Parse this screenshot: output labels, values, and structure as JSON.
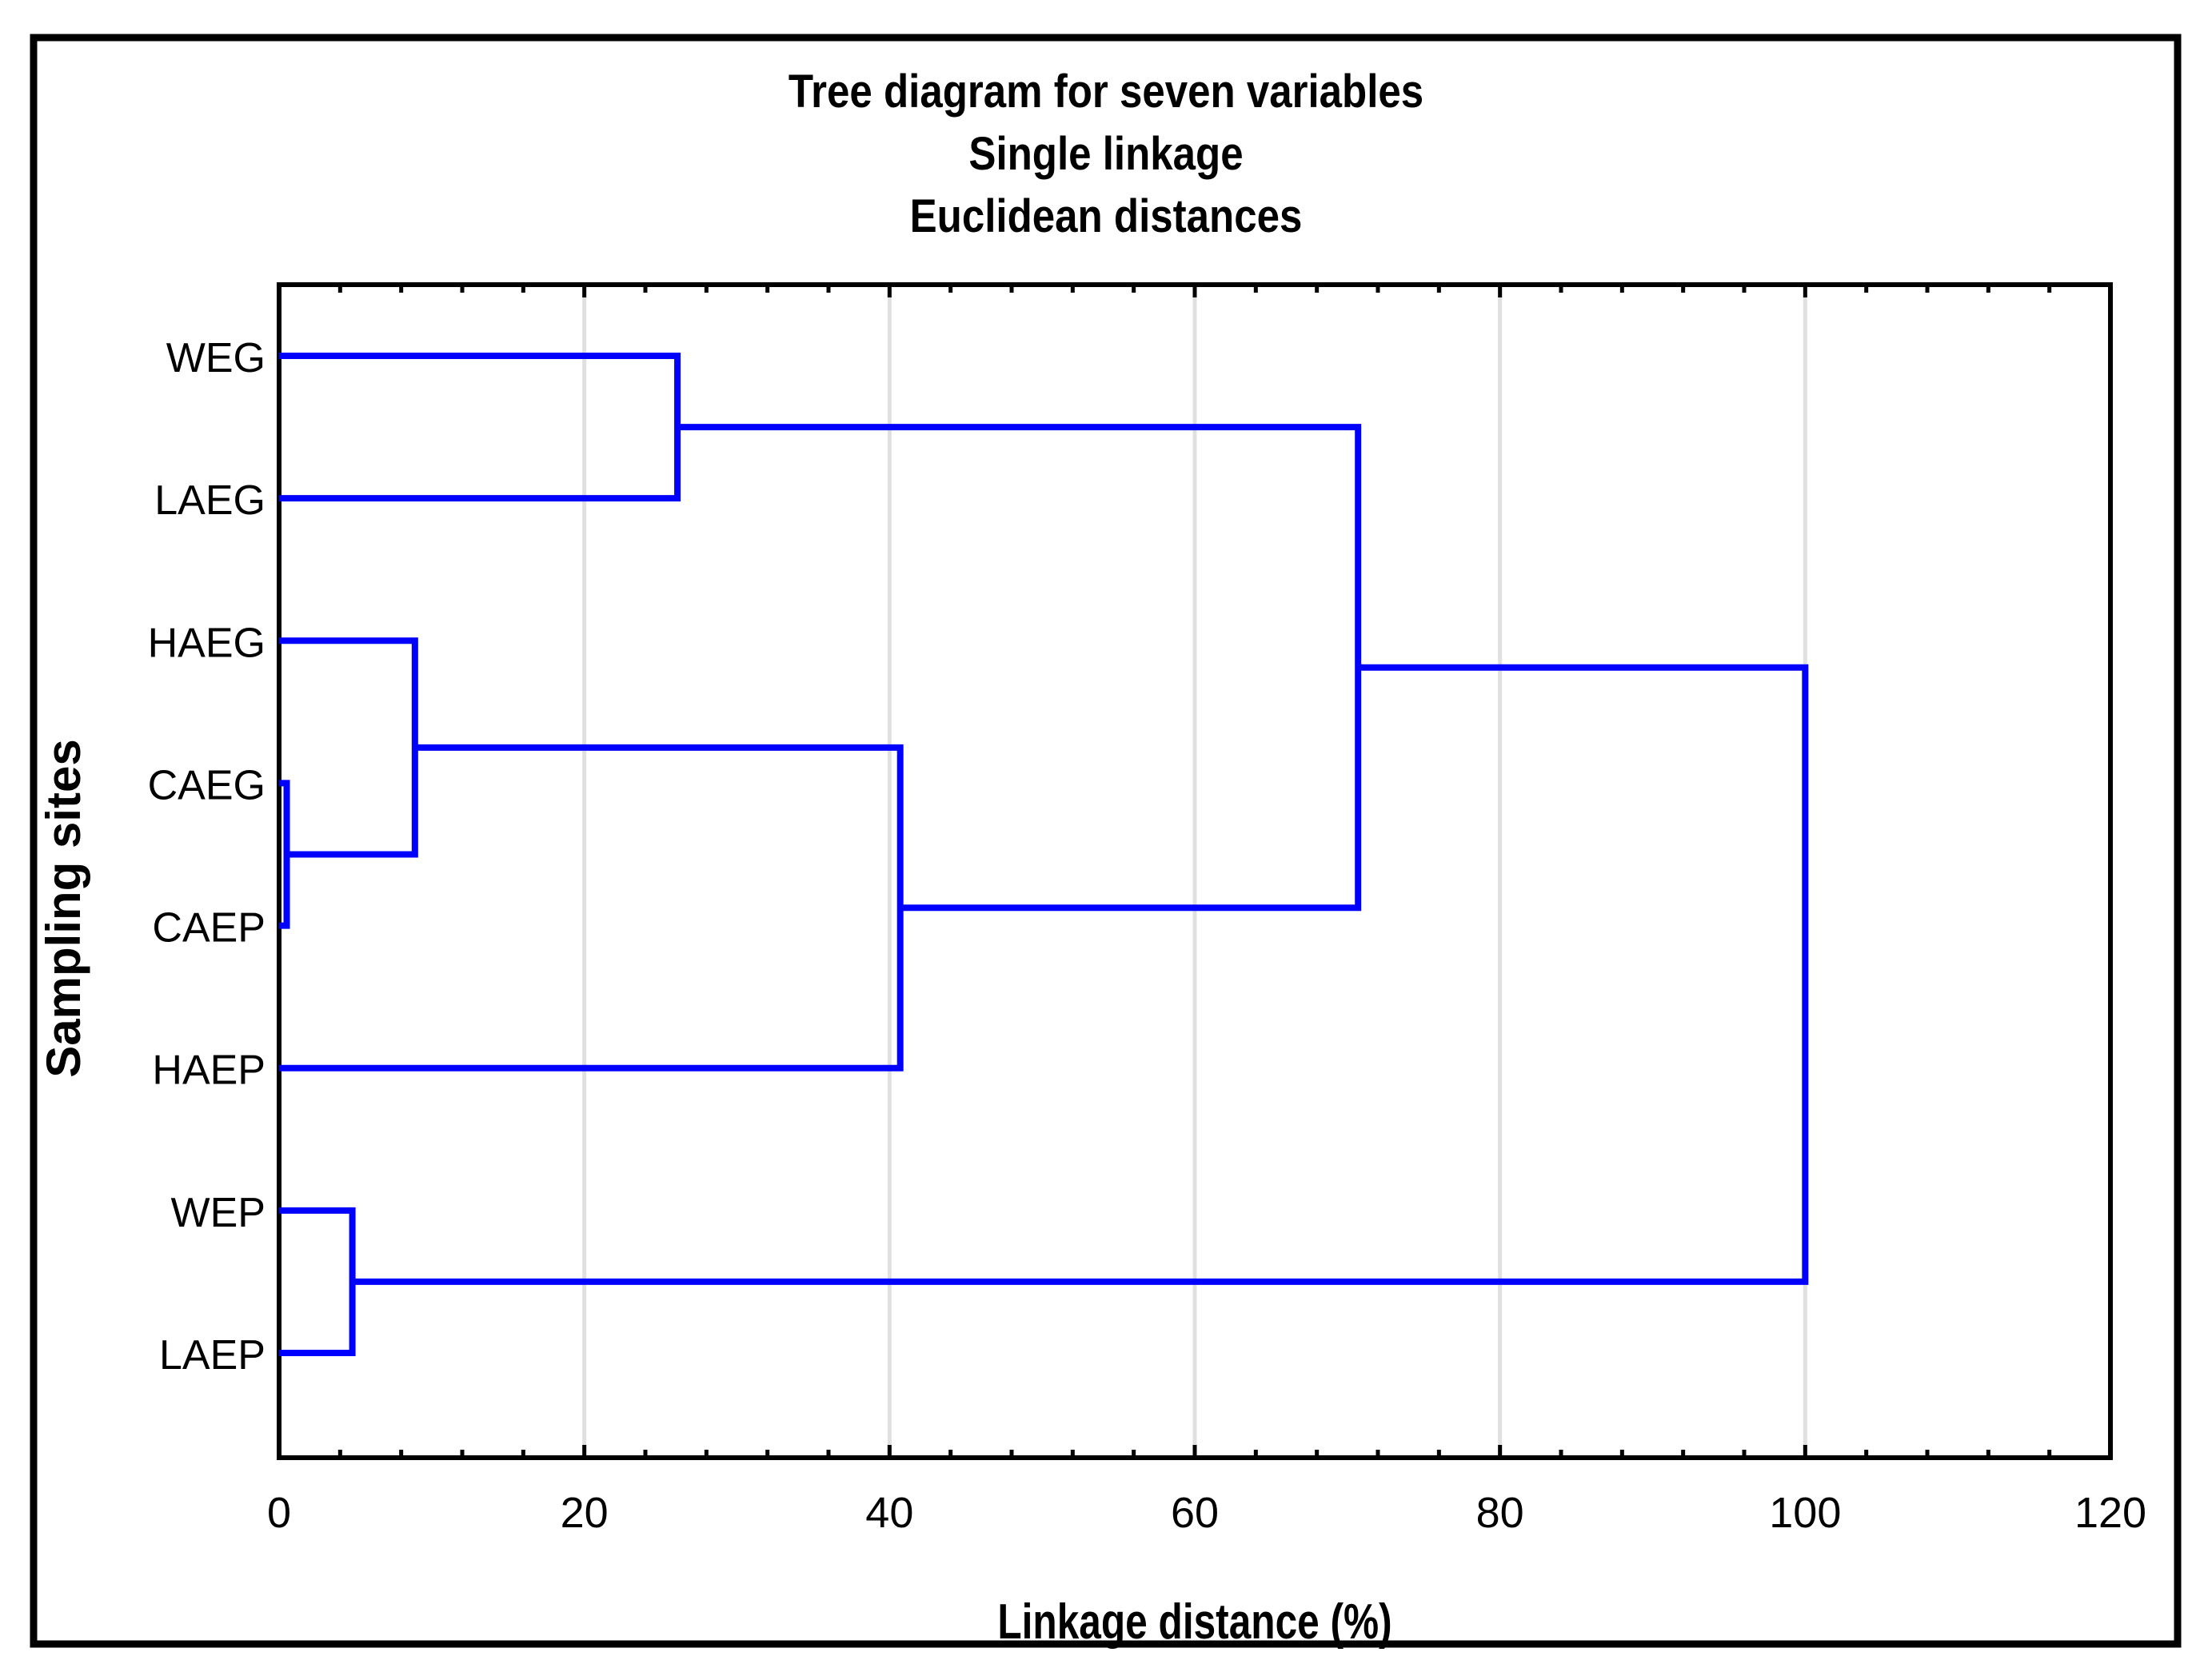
{
  "figure": {
    "title_lines": [
      "Tree diagram for seven variables",
      "Single linkage",
      "Euclidean distances"
    ],
    "x_axis_label": "Linkage distance (%)",
    "y_axis_label": "Sampling sites"
  },
  "chart_data": {
    "type": "dendrogram",
    "orientation": "horizontal",
    "title": "Tree diagram for seven variables / Single linkage / Euclidean distances",
    "xlabel": "Linkage distance (%)",
    "ylabel": "Sampling sites",
    "leaves": [
      "WEG",
      "LAEG",
      "HAEG",
      "CAEG",
      "CAEP",
      "HAEP",
      "WEP",
      "LAEP"
    ],
    "xlim": [
      0,
      120
    ],
    "x_major_ticks": [
      0,
      20,
      40,
      60,
      80,
      100,
      120
    ],
    "x_major_tick_labels": [
      "0",
      "20",
      "40",
      "60",
      "80",
      "100",
      "120"
    ],
    "x_minor_tick_step": 4,
    "gridlines_at": [
      20,
      40,
      60,
      80,
      100
    ],
    "grid": "vertical-major-only",
    "legend": "none",
    "merges": [
      {
        "id": "M1",
        "a": "CAEG",
        "b": "CAEP",
        "distance": 0.5
      },
      {
        "id": "M2",
        "a": "WEP",
        "b": "LAEP",
        "distance": 4.8
      },
      {
        "id": "M3",
        "a": "HAEG",
        "b": "M1",
        "distance": 8.9
      },
      {
        "id": "M4",
        "a": "WEG",
        "b": "LAEG",
        "distance": 26.1
      },
      {
        "id": "M5",
        "a": "M3",
        "b": "HAEP",
        "distance": 40.7
      },
      {
        "id": "M6",
        "a": "M4",
        "b": "M5",
        "distance": 70.7
      },
      {
        "id": "M7",
        "a": "M6",
        "b": "M2",
        "distance": 100.0,
        "root": true
      }
    ],
    "colors": {
      "link": "#0000ff",
      "grid": "#e0e0e0",
      "axis": "#000000",
      "border": "#000000",
      "background": "#ffffff"
    }
  }
}
